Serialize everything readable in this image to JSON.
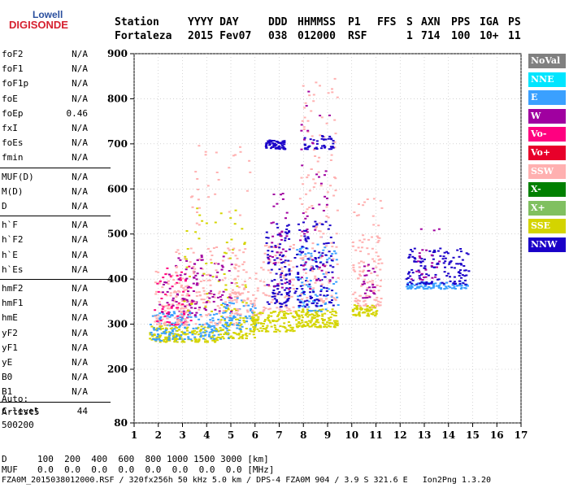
{
  "logo": {
    "line1": "Lowell",
    "line2": "DIGISONDE"
  },
  "header": {
    "cols": [
      {
        "label": "Station",
        "value": "Fortaleza"
      },
      {
        "label": "YYYY DAY",
        "value": "2015 Fev07"
      },
      {
        "label": "DDD",
        "value": "038"
      },
      {
        "label": "HHMMSS",
        "value": "012000"
      },
      {
        "label": "P1",
        "value": "RSF"
      },
      {
        "label": "FFS",
        "value": ""
      },
      {
        "label": "S",
        "value": "1"
      },
      {
        "label": "AXN",
        "value": "714"
      },
      {
        "label": "PPS",
        "value": "100"
      },
      {
        "label": "IGA",
        "value": "10+"
      },
      {
        "label": "PS",
        "value": "11"
      }
    ]
  },
  "params": [
    {
      "group": [
        {
          "name": "foF2",
          "value": "N/A"
        },
        {
          "name": "foF1",
          "value": "N/A"
        },
        {
          "name": "foF1p",
          "value": "N/A"
        },
        {
          "name": "foE",
          "value": "N/A"
        },
        {
          "name": "foEp",
          "value": "0.46"
        },
        {
          "name": "fxI",
          "value": "N/A"
        },
        {
          "name": "foEs",
          "value": "N/A"
        },
        {
          "name": "fmin",
          "value": "N/A"
        }
      ]
    },
    {
      "group": [
        {
          "name": "MUF(D)",
          "value": "N/A"
        },
        {
          "name": "M(D)",
          "value": "N/A"
        },
        {
          "name": "D",
          "value": "N/A"
        }
      ]
    },
    {
      "group": [
        {
          "name": "h`F",
          "value": "N/A"
        },
        {
          "name": "h`F2",
          "value": "N/A"
        },
        {
          "name": "h`E",
          "value": "N/A"
        },
        {
          "name": "h`Es",
          "value": "N/A"
        }
      ]
    },
    {
      "group": [
        {
          "name": "hmF2",
          "value": "N/A"
        },
        {
          "name": "hmF1",
          "value": "N/A"
        },
        {
          "name": "hmE",
          "value": "N/A"
        },
        {
          "name": "yF2",
          "value": "N/A"
        },
        {
          "name": "yF1",
          "value": "N/A"
        },
        {
          "name": "yE",
          "value": "N/A"
        },
        {
          "name": "B0",
          "value": "N/A"
        },
        {
          "name": "B1",
          "value": "N/A"
        }
      ]
    },
    {
      "group": [
        {
          "name": "C-level",
          "value": "44"
        }
      ]
    }
  ],
  "auto": {
    "line1": "Auto:",
    "line2": "Artist5",
    "line3": "500200"
  },
  "footer": {
    "d_label": "D",
    "d_values": "100  200  400  600  800 1000 1500 3000 [km]",
    "muf_label": "MUF",
    "muf_values": "0.0  0.0  0.0  0.0  0.0  0.0  0.0  0.0 [MHz]",
    "file_line": "FZA0M_2015038012000.RSF / 320fx256h 50 kHz 5.0 km / DPS-4 FZA0M 904 / 3.9 S 321.6 E   Ion2Png 1.3.20"
  },
  "legend": [
    {
      "label": "NoVal",
      "color": "#808080"
    },
    {
      "label": "NNE",
      "color": "#00e5ff"
    },
    {
      "label": "E",
      "color": "#3aa0ff"
    },
    {
      "label": "W",
      "color": "#a000a0"
    },
    {
      "label": "Vo-",
      "color": "#ff0080"
    },
    {
      "label": "Vo+",
      "color": "#e8002a"
    },
    {
      "label": "SSW",
      "color": "#ffb0b0"
    },
    {
      "label": "X-",
      "color": "#008000"
    },
    {
      "label": "X+",
      "color": "#80c060"
    },
    {
      "label": "SSE",
      "color": "#d4d400"
    },
    {
      "label": "NNW",
      "color": "#1a00c8"
    }
  ],
  "chart_data": {
    "type": "scatter",
    "xlim": [
      1,
      17
    ],
    "ylim": [
      80,
      900
    ],
    "xticks": [
      1,
      2,
      3,
      4,
      5,
      6,
      7,
      8,
      9,
      10,
      11,
      12,
      13,
      14,
      15,
      16,
      17
    ],
    "yticks": [
      80,
      200,
      300,
      400,
      500,
      600,
      700,
      800,
      900
    ],
    "clusters": [
      {
        "x0": 1.6,
        "x1": 2.6,
        "ymin": 262,
        "ymax": 300,
        "color": "#d4d400",
        "n": 60
      },
      {
        "x0": 1.6,
        "x1": 3.0,
        "ymin": 265,
        "ymax": 330,
        "color": "#3aa0ff",
        "n": 80
      },
      {
        "x0": 1.8,
        "x1": 3.2,
        "ymin": 300,
        "ymax": 420,
        "color": "#ffb0b0",
        "n": 90
      },
      {
        "x0": 1.8,
        "x1": 3.4,
        "ymin": 300,
        "ymax": 430,
        "color": "#ff0080",
        "n": 60
      },
      {
        "x0": 2.0,
        "x1": 3.6,
        "ymin": 320,
        "ymax": 450,
        "color": "#a000a0",
        "n": 50
      },
      {
        "x0": 2.6,
        "x1": 4.5,
        "ymin": 262,
        "ymax": 300,
        "color": "#d4d400",
        "n": 90
      },
      {
        "x0": 2.8,
        "x1": 5.0,
        "ymin": 268,
        "ymax": 330,
        "color": "#3aa0ff",
        "n": 90
      },
      {
        "x0": 2.6,
        "x1": 5.4,
        "ymin": 300,
        "ymax": 480,
        "color": "#ffb0b0",
        "n": 120
      },
      {
        "x0": 2.8,
        "x1": 5.6,
        "ymin": 330,
        "ymax": 560,
        "color": "#d4d400",
        "n": 60
      },
      {
        "x0": 3.0,
        "x1": 5.0,
        "ymin": 330,
        "ymax": 470,
        "color": "#a000a0",
        "n": 60
      },
      {
        "x0": 3.2,
        "x1": 5.8,
        "ymin": 350,
        "ymax": 700,
        "color": "#ffb0b0",
        "n": 70
      },
      {
        "x0": 4.5,
        "x1": 6.0,
        "ymin": 270,
        "ymax": 320,
        "color": "#d4d400",
        "n": 80
      },
      {
        "x0": 4.6,
        "x1": 6.0,
        "ymin": 290,
        "ymax": 360,
        "color": "#3aa0ff",
        "n": 60
      },
      {
        "x0": 5.0,
        "x1": 6.2,
        "ymin": 320,
        "ymax": 420,
        "color": "#ffb0b0",
        "n": 50
      },
      {
        "x0": 5.8,
        "x1": 7.6,
        "ymin": 285,
        "ymax": 330,
        "color": "#d4d400",
        "n": 110
      },
      {
        "x0": 6.2,
        "x1": 7.6,
        "ymin": 330,
        "ymax": 480,
        "color": "#ffb0b0",
        "n": 80
      },
      {
        "x0": 6.4,
        "x1": 7.4,
        "ymin": 340,
        "ymax": 530,
        "color": "#1a00c8",
        "n": 100
      },
      {
        "x0": 6.4,
        "x1": 7.2,
        "ymin": 690,
        "ymax": 710,
        "color": "#1a00c8",
        "n": 70
      },
      {
        "x0": 6.5,
        "x1": 7.4,
        "ymin": 380,
        "ymax": 600,
        "color": "#a000a0",
        "n": 40
      },
      {
        "x0": 7.6,
        "x1": 9.4,
        "ymin": 295,
        "ymax": 335,
        "color": "#d4d400",
        "n": 140
      },
      {
        "x0": 7.6,
        "x1": 9.4,
        "ymin": 330,
        "ymax": 480,
        "color": "#3aa0ff",
        "n": 90
      },
      {
        "x0": 7.6,
        "x1": 9.2,
        "ymin": 340,
        "ymax": 530,
        "color": "#1a00c8",
        "n": 120
      },
      {
        "x0": 7.8,
        "x1": 9.4,
        "ymin": 350,
        "ymax": 850,
        "color": "#ffb0b0",
        "n": 120
      },
      {
        "x0": 7.8,
        "x1": 9.2,
        "ymin": 380,
        "ymax": 820,
        "color": "#a000a0",
        "n": 50
      },
      {
        "x0": 8.0,
        "x1": 9.2,
        "ymin": 690,
        "ymax": 720,
        "color": "#1a00c8",
        "n": 40
      },
      {
        "x0": 10.0,
        "x1": 11.0,
        "ymin": 320,
        "ymax": 345,
        "color": "#d4d400",
        "n": 60
      },
      {
        "x0": 10.0,
        "x1": 11.2,
        "ymin": 340,
        "ymax": 580,
        "color": "#ffb0b0",
        "n": 110
      },
      {
        "x0": 10.4,
        "x1": 11.0,
        "ymin": 360,
        "ymax": 440,
        "color": "#a000a0",
        "n": 25
      },
      {
        "x0": 12.2,
        "x1": 14.8,
        "ymin": 380,
        "ymax": 395,
        "color": "#3aa0ff",
        "n": 90
      },
      {
        "x0": 12.2,
        "x1": 14.8,
        "ymin": 390,
        "ymax": 470,
        "color": "#1a00c8",
        "n": 130
      },
      {
        "x0": 12.4,
        "x1": 13.6,
        "ymin": 400,
        "ymax": 520,
        "color": "#a000a0",
        "n": 25
      }
    ]
  }
}
